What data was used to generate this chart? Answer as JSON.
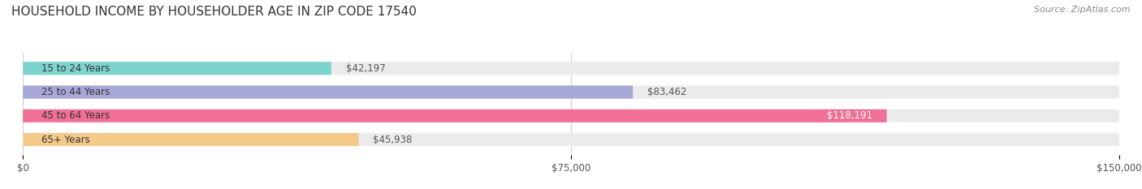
{
  "title": "HOUSEHOLD INCOME BY HOUSEHOLDER AGE IN ZIP CODE 17540",
  "source": "Source: ZipAtlas.com",
  "categories": [
    "15 to 24 Years",
    "25 to 44 Years",
    "45 to 64 Years",
    "65+ Years"
  ],
  "values": [
    42197,
    83462,
    118191,
    45938
  ],
  "bar_colors": [
    "#7dd4cf",
    "#a8a8d8",
    "#f07096",
    "#f5c98a"
  ],
  "bar_bg_color": "#ebebeb",
  "value_labels": [
    "$42,197",
    "$83,462",
    "$118,191",
    "$45,938"
  ],
  "xlim": [
    0,
    150000
  ],
  "xticks": [
    0,
    75000,
    150000
  ],
  "xtick_labels": [
    "$0",
    "$75,000",
    "$150,000"
  ],
  "title_fontsize": 11,
  "label_fontsize": 8.5,
  "source_fontsize": 8,
  "bar_height": 0.55,
  "background_color": "#ffffff"
}
